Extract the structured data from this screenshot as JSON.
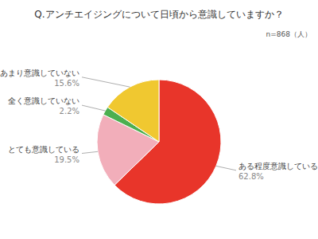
{
  "chart_data": {
    "type": "pie",
    "title": "Q.アンチエイジングについて日頃から意識していますか？",
    "annotations": [
      "n=868（人）"
    ],
    "categories": [
      "ある程度意識している",
      "とても意識している",
      "全く意識していない",
      "あまり意識していない"
    ],
    "values": [
      62.8,
      19.5,
      2.2,
      15.6
    ],
    "value_labels": [
      "62.8%",
      "19.5%",
      "2.2%",
      "15.6%"
    ],
    "colors": [
      "#E8352A",
      "#F2AEBA",
      "#4CAF50",
      "#F0C830"
    ],
    "data_labels": true
  }
}
